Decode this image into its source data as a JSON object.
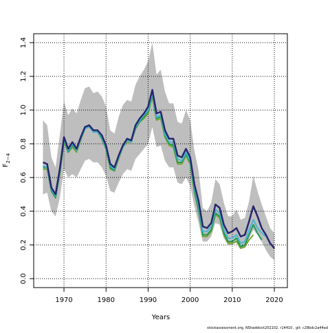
{
  "chart_data": {
    "type": "line",
    "xlabel": "Years",
    "ylabel": "F",
    "ylabel_sub": "2−4",
    "footer": "stockassessment.org, NShaddock202102, r14410 , git: c28bdc2a44ad",
    "x": [
      1965,
      1966,
      1967,
      1968,
      1969,
      1970,
      1971,
      1972,
      1973,
      1974,
      1975,
      1976,
      1977,
      1978,
      1979,
      1980,
      1981,
      1982,
      1983,
      1984,
      1985,
      1986,
      1987,
      1988,
      1989,
      1990,
      1991,
      1992,
      1993,
      1994,
      1995,
      1996,
      1997,
      1998,
      1999,
      2000,
      2001,
      2002,
      2003,
      2004,
      2005,
      2006,
      2007,
      2008,
      2009,
      2010,
      2011,
      2012,
      2013,
      2014,
      2015,
      2016,
      2017,
      2018,
      2019,
      2020
    ],
    "band": {
      "color": "#bebebe",
      "upper": [
        0.94,
        0.91,
        0.72,
        0.66,
        0.85,
        1.05,
        0.97,
        1.01,
        0.98,
        1.06,
        1.13,
        1.14,
        1.1,
        1.11,
        1.08,
        1.02,
        0.88,
        0.86,
        0.96,
        1.03,
        1.06,
        1.05,
        1.15,
        1.2,
        1.24,
        1.29,
        1.4,
        1.21,
        1.24,
        1.11,
        1.04,
        1.04,
        0.93,
        0.92,
        1.0,
        0.94,
        0.76,
        0.64,
        0.42,
        0.4,
        0.45,
        0.59,
        0.56,
        0.45,
        0.37,
        0.37,
        0.41,
        0.35,
        0.36,
        0.46,
        0.61,
        0.52,
        0.44,
        0.37,
        0.3,
        0.27
      ],
      "lower": [
        0.5,
        0.51,
        0.4,
        0.37,
        0.48,
        0.65,
        0.6,
        0.62,
        0.6,
        0.65,
        0.7,
        0.71,
        0.69,
        0.69,
        0.66,
        0.61,
        0.52,
        0.51,
        0.57,
        0.62,
        0.65,
        0.64,
        0.71,
        0.74,
        0.77,
        0.8,
        0.9,
        0.78,
        0.79,
        0.7,
        0.66,
        0.66,
        0.57,
        0.56,
        0.6,
        0.55,
        0.43,
        0.33,
        0.22,
        0.22,
        0.25,
        0.33,
        0.32,
        0.24,
        0.2,
        0.2,
        0.22,
        0.18,
        0.18,
        0.24,
        0.29,
        0.26,
        0.22,
        0.17,
        0.13,
        0.11
      ]
    },
    "series": [
      {
        "color": "#7aa22a",
        "values": [
          0.65,
          0.65,
          0.52,
          0.48,
          0.62,
          0.81,
          0.75,
          0.78,
          0.75,
          0.82,
          0.89,
          0.9,
          0.87,
          0.87,
          0.83,
          0.77,
          0.65,
          0.64,
          0.71,
          0.78,
          0.81,
          0.81,
          0.89,
          0.93,
          0.95,
          0.98,
          1.08,
          0.94,
          0.95,
          0.84,
          0.79,
          0.78,
          0.68,
          0.68,
          0.73,
          0.68,
          0.51,
          0.4,
          0.25,
          0.25,
          0.28,
          0.38,
          0.36,
          0.26,
          0.21,
          0.21,
          0.22,
          0.18,
          0.19,
          0.23,
          0.26,
          null,
          null,
          null,
          null,
          null
        ]
      },
      {
        "color": "#1f9a5a",
        "values": [
          0.66,
          0.66,
          0.52,
          0.48,
          0.63,
          0.82,
          0.75,
          0.79,
          0.76,
          0.83,
          0.89,
          0.9,
          0.87,
          0.87,
          0.83,
          0.77,
          0.66,
          0.64,
          0.72,
          0.78,
          0.82,
          0.81,
          0.89,
          0.93,
          0.96,
          0.99,
          1.09,
          0.95,
          0.96,
          0.85,
          0.8,
          0.79,
          0.69,
          0.69,
          0.74,
          0.69,
          0.52,
          0.41,
          0.26,
          0.26,
          0.29,
          0.39,
          0.37,
          0.27,
          0.22,
          0.22,
          0.24,
          0.19,
          0.2,
          0.26,
          0.32,
          0.27,
          0.23,
          null,
          null,
          null
        ]
      },
      {
        "color": "#4ab4cf",
        "values": [
          0.67,
          0.66,
          0.53,
          0.49,
          0.64,
          0.83,
          0.76,
          0.8,
          0.76,
          0.83,
          0.89,
          0.9,
          0.87,
          0.87,
          0.84,
          0.78,
          0.67,
          0.65,
          0.72,
          0.78,
          0.82,
          0.81,
          0.9,
          0.94,
          0.97,
          1.0,
          1.1,
          0.96,
          0.97,
          0.86,
          0.81,
          0.81,
          0.71,
          0.7,
          0.75,
          0.7,
          0.54,
          0.43,
          0.28,
          0.28,
          0.31,
          0.41,
          0.39,
          0.29,
          0.24,
          0.24,
          0.26,
          0.21,
          0.22,
          0.29,
          0.35,
          0.3,
          0.27,
          0.25,
          null,
          null
        ]
      },
      {
        "color": "#26266e",
        "values": [
          0.69,
          0.68,
          0.54,
          0.5,
          0.65,
          0.84,
          0.77,
          0.81,
          0.77,
          0.84,
          0.9,
          0.91,
          0.88,
          0.88,
          0.85,
          0.79,
          0.68,
          0.66,
          0.73,
          0.79,
          0.83,
          0.82,
          0.91,
          0.95,
          0.98,
          1.02,
          1.12,
          0.98,
          0.99,
          0.88,
          0.83,
          0.83,
          0.73,
          0.72,
          0.77,
          0.72,
          0.56,
          0.46,
          0.31,
          0.3,
          0.33,
          0.44,
          0.42,
          0.32,
          0.27,
          0.28,
          0.3,
          0.25,
          0.26,
          0.34,
          0.43,
          0.37,
          0.3,
          0.26,
          0.21,
          0.18
        ]
      }
    ],
    "xlim": [
      1962.8,
      2023.1
    ],
    "ylim": [
      -0.053,
      1.453
    ],
    "xticks": [
      1970,
      1980,
      1990,
      2000,
      2010,
      2020
    ],
    "yticks": [
      {
        "value": 0,
        "label": "0.0"
      },
      0.2,
      0.4,
      0.6,
      0.8,
      {
        "value": 1,
        "label": "1.0"
      },
      1.2,
      1.4
    ],
    "grid": true
  }
}
